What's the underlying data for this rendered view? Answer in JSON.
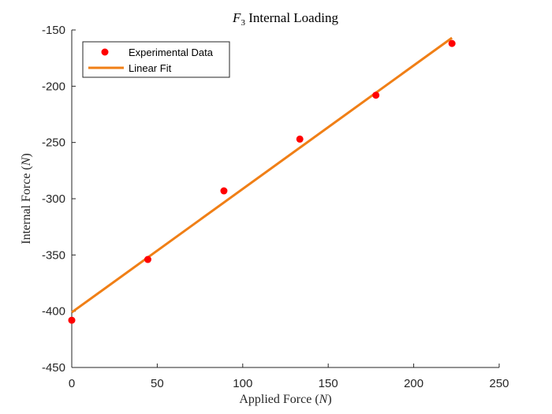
{
  "chart_data": {
    "type": "scatter",
    "title_base": "F",
    "title_sub": "3",
    "title_rest": " Internal Loading",
    "xlabel_text": "Applied Force (",
    "xlabel_var": "N",
    "xlabel_close": ")",
    "ylabel_text": "Internal Force (",
    "ylabel_var": "N",
    "ylabel_close": ")",
    "xlim": [
      0,
      250
    ],
    "ylim": [
      -450,
      -150
    ],
    "xticks": [
      0,
      50,
      100,
      150,
      200,
      250
    ],
    "yticks": [
      -150,
      -200,
      -250,
      -300,
      -350,
      -400,
      -450
    ],
    "grid": false,
    "legend_position": "top-left",
    "series": [
      {
        "name": "Experimental Data",
        "kind": "markers",
        "color": "#ff0000",
        "x": [
          0,
          44.5,
          89,
          133.4,
          177.9,
          222.4
        ],
        "y": [
          -408,
          -354,
          -293,
          -247,
          -208,
          -162
        ]
      },
      {
        "name": "Linear Fit",
        "kind": "line",
        "color": "#f07f16",
        "x": [
          0,
          222.4
        ],
        "y": [
          -401,
          -157
        ]
      }
    ]
  }
}
